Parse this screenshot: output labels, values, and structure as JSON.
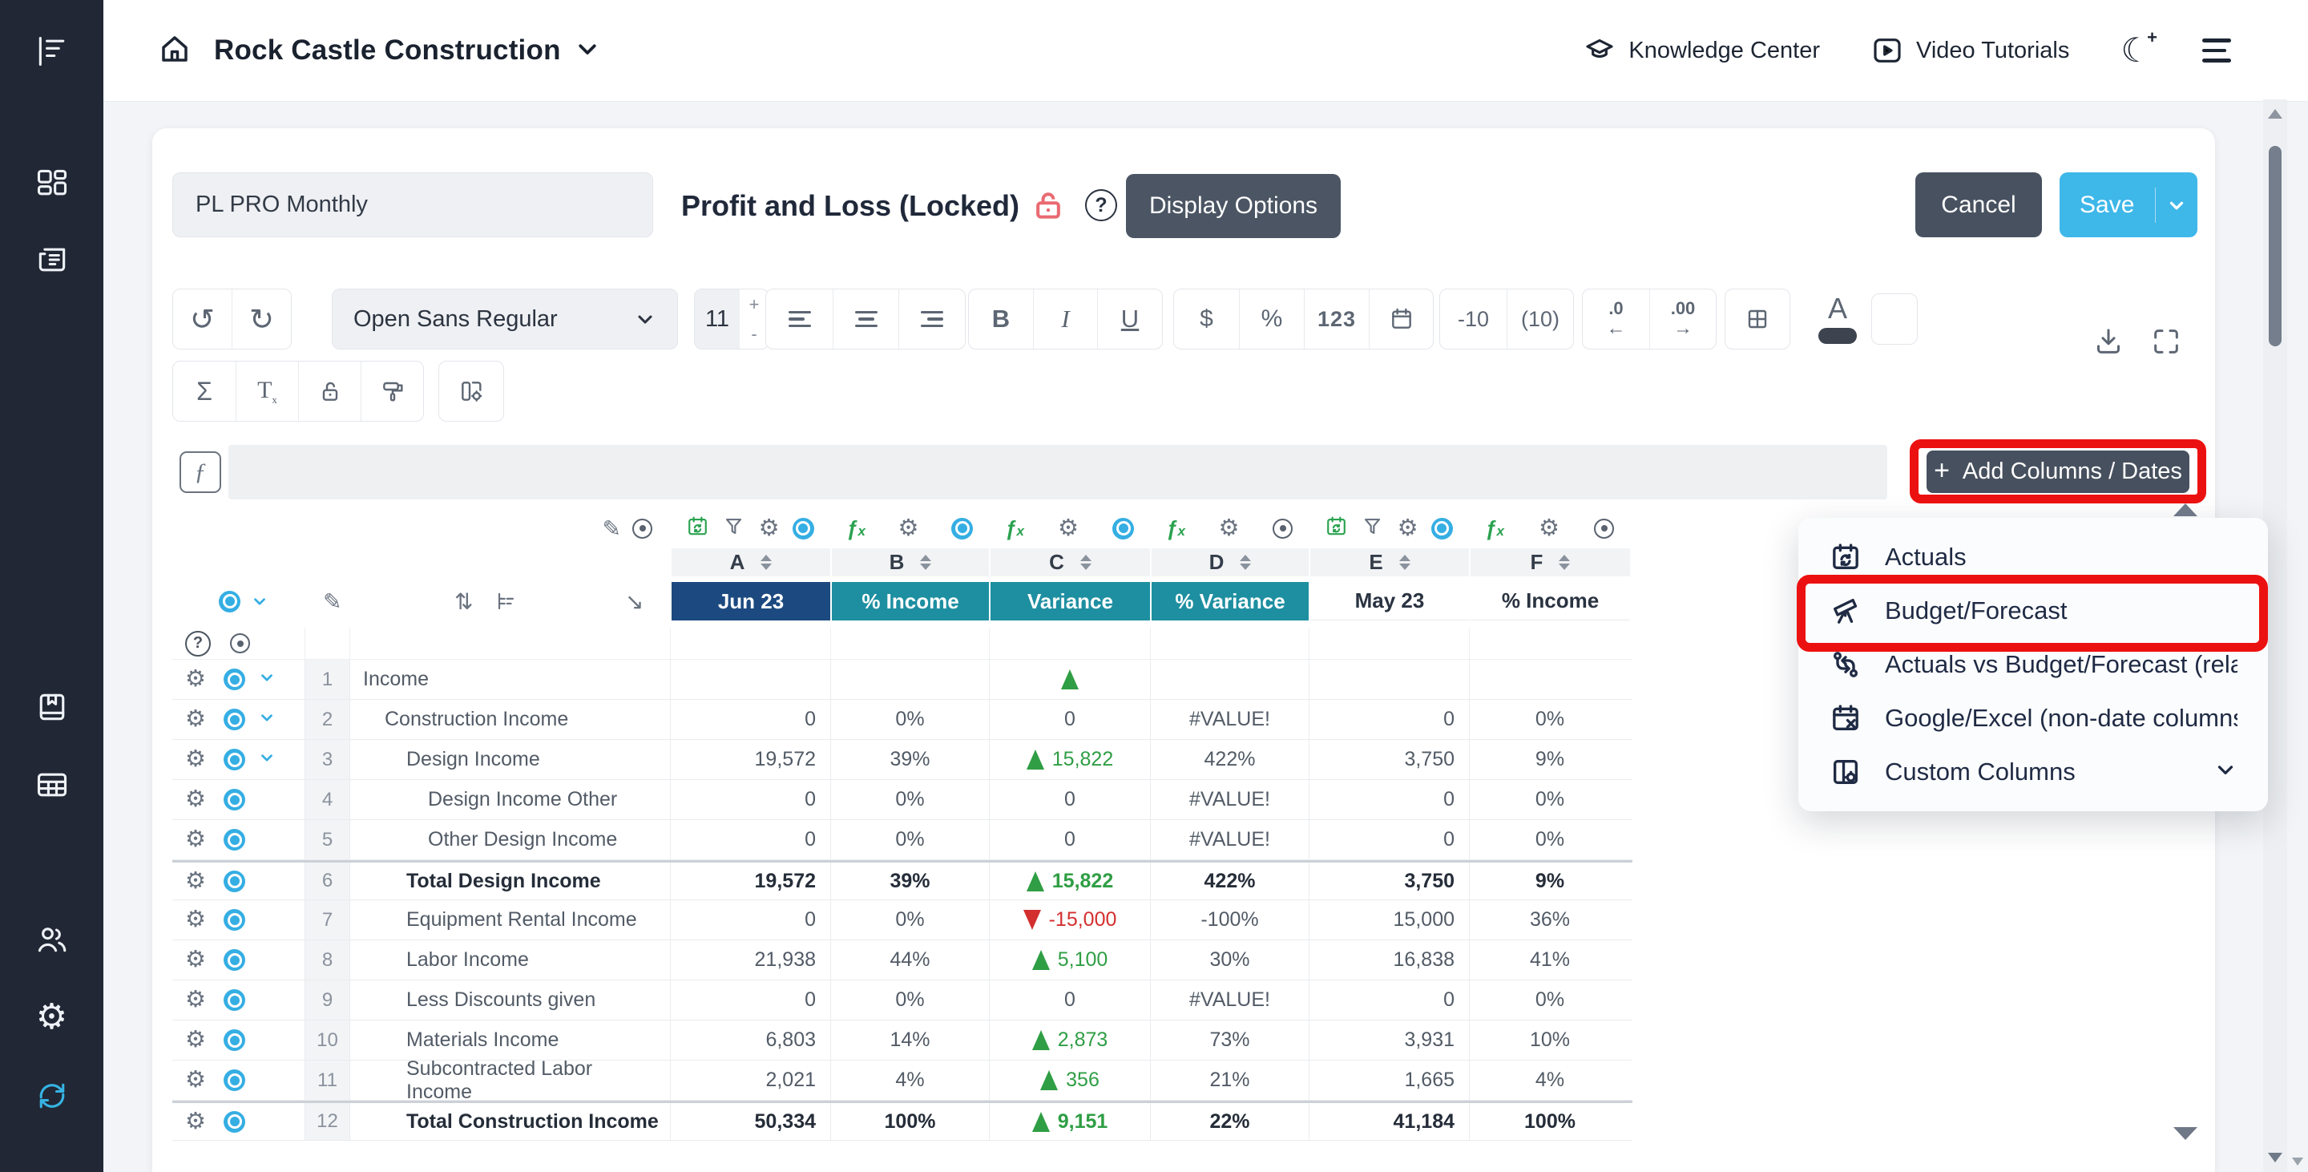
{
  "header": {
    "company": "Rock Castle Construction",
    "knowledge_center": "Knowledge Center",
    "video_tutorials": "Video Tutorials"
  },
  "title_bar": {
    "report_name_value": "PL PRO Monthly",
    "title": "Profit and Loss (Locked)",
    "display_options": "Display Options",
    "cancel": "Cancel",
    "save": "Save"
  },
  "toolbar": {
    "font_name": "Open Sans Regular",
    "font_size": "11",
    "size_plus": "+",
    "size_minus": "-",
    "bold": "B",
    "italic": "I",
    "underline": "U",
    "currency": "$",
    "percent": "%",
    "number_format": "123",
    "negative_plain": "-10",
    "negative_paren": "(10)",
    "decimal_decrease": ".0",
    "decimal_decrease_arrow": "←",
    "decimal_increase": ".00",
    "decimal_increase_arrow": "→",
    "text_color_letter": "A",
    "sum": "Σ",
    "clear_format_t": "T",
    "clear_format_x": "x",
    "undo": "↺",
    "redo": "↻",
    "formula_symbol": "ƒ"
  },
  "add_columns": {
    "plus": "+",
    "label": "Add Columns / Dates"
  },
  "dropdown": {
    "items": [
      {
        "icon": "calendar-sync",
        "label": "Actuals",
        "highlighted": false,
        "chevron": false
      },
      {
        "icon": "telescope",
        "label": "Budget/Forecast",
        "highlighted": true,
        "chevron": false
      },
      {
        "icon": "compare",
        "label": "Actuals vs Budget/Forecast (relati...",
        "highlighted": false,
        "chevron": false
      },
      {
        "icon": "calendar-x",
        "label": "Google/Excel (non-date columns)",
        "highlighted": false,
        "chevron": false
      },
      {
        "icon": "custom-columns",
        "label": "Custom Columns",
        "highlighted": false,
        "chevron": true
      }
    ]
  },
  "sheet": {
    "columns": [
      {
        "letter": "A",
        "header": "Jun 23",
        "style": "navy",
        "icons": [
          "calendar-sync-g",
          "filter",
          "gear",
          "eye-on"
        ]
      },
      {
        "letter": "B",
        "header": "% Income",
        "style": "teal",
        "icons": [
          "fx",
          "gear",
          "eye-on"
        ]
      },
      {
        "letter": "C",
        "header": "Variance",
        "style": "teal",
        "icons": [
          "fx",
          "gear",
          "eye-on"
        ]
      },
      {
        "letter": "D",
        "header": "% Variance",
        "style": "teal",
        "icons": [
          "fx",
          "gear",
          "eye-off"
        ]
      },
      {
        "letter": "E",
        "header": "May 23",
        "style": "plain",
        "icons": [
          "calendar-sync-g",
          "filter",
          "gear",
          "eye-on"
        ]
      },
      {
        "letter": "F",
        "header": "% Income",
        "style": "plain",
        "icons": [
          "fx",
          "gear",
          "eye-off"
        ]
      }
    ],
    "rows": [
      {
        "num": "1",
        "name": "Income",
        "indent": 0,
        "total": false,
        "chevron": true,
        "a": "",
        "b": "",
        "c": {
          "arrow": "up",
          "text": "",
          "color": ""
        },
        "d": "",
        "e": "",
        "f": ""
      },
      {
        "num": "2",
        "name": "Construction Income",
        "indent": 1,
        "total": false,
        "chevron": true,
        "a": "0",
        "b": "0%",
        "c": {
          "arrow": "",
          "text": "0",
          "color": ""
        },
        "d": "#VALUE!",
        "e": "0",
        "f": "0%"
      },
      {
        "num": "3",
        "name": "Design Income",
        "indent": 2,
        "total": false,
        "chevron": true,
        "a": "19,572",
        "b": "39%",
        "c": {
          "arrow": "up",
          "text": "15,822",
          "color": "green"
        },
        "d": "422%",
        "e": "3,750",
        "f": "9%"
      },
      {
        "num": "4",
        "name": "Design Income Other",
        "indent": 3,
        "total": false,
        "chevron": false,
        "a": "0",
        "b": "0%",
        "c": {
          "arrow": "",
          "text": "0",
          "color": ""
        },
        "d": "#VALUE!",
        "e": "0",
        "f": "0%"
      },
      {
        "num": "5",
        "name": "Other Design Income",
        "indent": 3,
        "total": false,
        "chevron": false,
        "a": "0",
        "b": "0%",
        "c": {
          "arrow": "",
          "text": "0",
          "color": ""
        },
        "d": "#VALUE!",
        "e": "0",
        "f": "0%"
      },
      {
        "num": "6",
        "name": "Total Design Income",
        "indent": 2,
        "total": true,
        "chevron": false,
        "a": "19,572",
        "b": "39%",
        "c": {
          "arrow": "up",
          "text": "15,822",
          "color": "green"
        },
        "d": "422%",
        "e": "3,750",
        "f": "9%"
      },
      {
        "num": "7",
        "name": "Equipment Rental Income",
        "indent": 2,
        "total": false,
        "chevron": false,
        "a": "0",
        "b": "0%",
        "c": {
          "arrow": "down",
          "text": "-15,000",
          "color": "red"
        },
        "d": "-100%",
        "e": "15,000",
        "f": "36%"
      },
      {
        "num": "8",
        "name": "Labor Income",
        "indent": 2,
        "total": false,
        "chevron": false,
        "a": "21,938",
        "b": "44%",
        "c": {
          "arrow": "up",
          "text": "5,100",
          "color": "green"
        },
        "d": "30%",
        "e": "16,838",
        "f": "41%"
      },
      {
        "num": "9",
        "name": "Less Discounts given",
        "indent": 2,
        "total": false,
        "chevron": false,
        "a": "0",
        "b": "0%",
        "c": {
          "arrow": "",
          "text": "0",
          "color": ""
        },
        "d": "#VALUE!",
        "e": "0",
        "f": "0%"
      },
      {
        "num": "10",
        "name": "Materials Income",
        "indent": 2,
        "total": false,
        "chevron": false,
        "a": "6,803",
        "b": "14%",
        "c": {
          "arrow": "up",
          "text": "2,873",
          "color": "green"
        },
        "d": "73%",
        "e": "3,931",
        "f": "10%"
      },
      {
        "num": "11",
        "name": "Subcontracted Labor Income",
        "indent": 2,
        "total": false,
        "chevron": false,
        "a": "2,021",
        "b": "4%",
        "c": {
          "arrow": "up",
          "text": "356",
          "color": "green"
        },
        "d": "21%",
        "e": "1,665",
        "f": "4%"
      },
      {
        "num": "12",
        "name": "Total Construction Income",
        "indent": 2,
        "total": true,
        "chevron": false,
        "a": "50,334",
        "b": "100%",
        "c": {
          "arrow": "up",
          "text": "9,151",
          "color": "green"
        },
        "d": "22%",
        "e": "41,184",
        "f": "100%"
      }
    ]
  },
  "colors": {
    "accent_blue": "#3eb7e9",
    "slate_button": "#47505e",
    "navy_header": "#1c4a80",
    "teal_header": "#1e8fa1",
    "positive_green": "#2f9e44",
    "negative_red": "#d32f2f",
    "annotation_red": "#ec1111",
    "eye_blue": "#35aee3",
    "sidebar_bg": "#212734"
  }
}
